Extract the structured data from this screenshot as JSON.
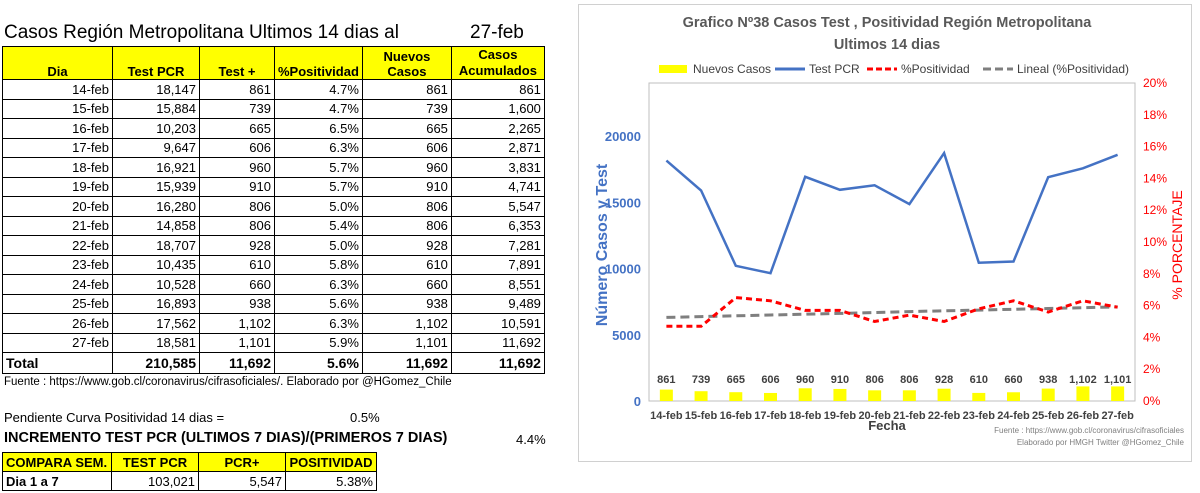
{
  "sheet": {
    "title": "Casos Región Metropolitana Ultimos 14 dias al",
    "date": "27-feb",
    "columns": [
      "Dia",
      "Test PCR",
      "Test +",
      "%Positividad",
      "Nuevos Casos",
      "Casos"
    ],
    "col5_line2": "Acumulados",
    "rows": [
      [
        "14-feb",
        "18,147",
        "861",
        "4.7%",
        "861",
        "861"
      ],
      [
        "15-feb",
        "15,884",
        "739",
        "4.7%",
        "739",
        "1,600"
      ],
      [
        "16-feb",
        "10,203",
        "665",
        "6.5%",
        "665",
        "2,265"
      ],
      [
        "17-feb",
        "9,647",
        "606",
        "6.3%",
        "606",
        "2,871"
      ],
      [
        "18-feb",
        "16,921",
        "960",
        "5.7%",
        "960",
        "3,831"
      ],
      [
        "19-feb",
        "15,939",
        "910",
        "5.7%",
        "910",
        "4,741"
      ],
      [
        "20-feb",
        "16,280",
        "806",
        "5.0%",
        "806",
        "5,547"
      ],
      [
        "21-feb",
        "14,858",
        "806",
        "5.4%",
        "806",
        "6,353"
      ],
      [
        "22-feb",
        "18,707",
        "928",
        "5.0%",
        "928",
        "7,281"
      ],
      [
        "23-feb",
        "10,435",
        "610",
        "5.8%",
        "610",
        "7,891"
      ],
      [
        "24-feb",
        "10,528",
        "660",
        "6.3%",
        "660",
        "8,551"
      ],
      [
        "25-feb",
        "16,893",
        "938",
        "5.6%",
        "938",
        "9,489"
      ],
      [
        "26-feb",
        "17,562",
        "1,102",
        "6.3%",
        "1,102",
        "10,591"
      ],
      [
        "27-feb",
        "18,581",
        "1,101",
        "5.9%",
        "1,101",
        "11,692"
      ]
    ],
    "total": [
      "Total",
      "210,585",
      "11,692",
      "5.6%",
      "11,692",
      "11,692"
    ],
    "source": "Fuente : https://www.gob.cl/coronavirus/cifrasoficiales/.  Elaborado por  @HGomez_Chile",
    "slope_label": "Pendiente Curva Positividad 14 dias =",
    "slope_value": "0.5%",
    "increment_label": "INCREMENTO TEST PCR (ULTIMOS 7 DIAS)/(PRIMEROS 7 DIAS)",
    "increment_value": "4.4%",
    "compare": {
      "headers": [
        "COMPARA SEM.",
        "TEST PCR",
        "PCR+",
        "POSITIVIDAD"
      ],
      "row": [
        "Dia 1 a 7",
        "103,021",
        "5,547",
        "5.38%"
      ]
    }
  },
  "chart_data": {
    "type": "bar+line",
    "title": "Grafico Nº38  Casos Test ,  Positividad Región Metropolitana",
    "subtitle": "Ultimos 14 dias",
    "xlabel": "Fecha",
    "ylabel": "Número Casos y Test",
    "y2label": "% PORCENTAJE",
    "categories": [
      "14-feb",
      "15-feb",
      "16-feb",
      "17-feb",
      "18-feb",
      "19-feb",
      "20-feb",
      "21-feb",
      "22-feb",
      "23-feb",
      "24-feb",
      "25-feb",
      "26-feb",
      "27-feb"
    ],
    "ylim": [
      0,
      24000
    ],
    "yticks": [
      0,
      5000,
      10000,
      15000,
      20000
    ],
    "y2lim": [
      0,
      20
    ],
    "y2ticks": [
      0,
      2,
      4,
      6,
      8,
      10,
      12,
      14,
      16,
      18,
      20
    ],
    "y2tick_labels": [
      "0%",
      "2%",
      "4%",
      "6%",
      "8%",
      "10%",
      "12%",
      "14%",
      "16%",
      "18%",
      "20%"
    ],
    "legend": [
      "Nuevos Casos",
      "Test PCR",
      "%Positividad",
      "Lineal (%Positividad)"
    ],
    "series": [
      {
        "name": "Nuevos Casos",
        "kind": "bar",
        "axis": "left",
        "color": "#ffff00",
        "values": [
          861,
          739,
          665,
          606,
          960,
          910,
          806,
          806,
          928,
          610,
          660,
          938,
          1102,
          1101
        ],
        "labels": [
          "861",
          "739",
          "665",
          "606",
          "960",
          "910",
          "806",
          "806",
          "928",
          "610",
          "660",
          "938",
          "1,102",
          "1,101"
        ]
      },
      {
        "name": "Test PCR",
        "kind": "line",
        "axis": "left",
        "color": "#4472c4",
        "values": [
          18147,
          15884,
          10203,
          9647,
          16921,
          15939,
          16280,
          14858,
          18707,
          10435,
          10528,
          16893,
          17562,
          18581
        ]
      },
      {
        "name": "%Positividad",
        "kind": "dashed-line",
        "axis": "right",
        "color": "#ff0000",
        "values": [
          4.7,
          4.7,
          6.5,
          6.3,
          5.7,
          5.7,
          5.0,
          5.4,
          5.0,
          5.8,
          6.3,
          5.6,
          6.3,
          5.9
        ]
      },
      {
        "name": "Lineal (%Positividad)",
        "kind": "trendline",
        "axis": "right",
        "color": "#7f7f7f",
        "values": [
          5.26,
          5.31,
          5.36,
          5.41,
          5.46,
          5.51,
          5.56,
          5.62,
          5.67,
          5.72,
          5.77,
          5.82,
          5.87,
          5.92
        ]
      }
    ],
    "footer_line1": "Fuente  : https://www.gob.cl/coronavirus/cifrasoficiales",
    "footer_line2": "Elaborado por HMGH  Twitter  @HGomez_Chile"
  }
}
